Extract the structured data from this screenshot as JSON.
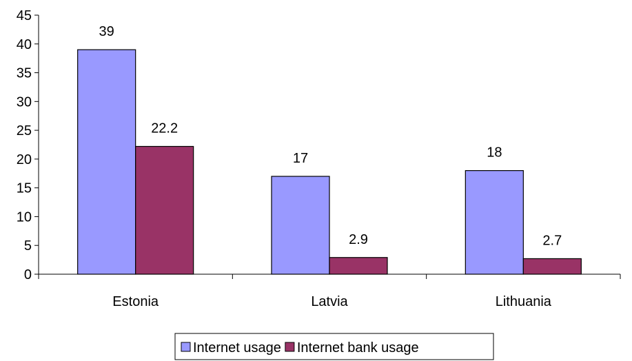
{
  "chart_data": {
    "type": "bar",
    "categories": [
      "Estonia",
      "Latvia",
      "Lithuania"
    ],
    "series": [
      {
        "name": "Internet usage",
        "values": [
          39,
          17,
          18
        ],
        "color": "#9999ff"
      },
      {
        "name": "Internet bank usage",
        "values": [
          22.2,
          2.9,
          2.7
        ],
        "color": "#993366"
      }
    ],
    "data_labels": [
      [
        "39",
        "17",
        "18"
      ],
      [
        "22.2",
        "2.9",
        "2.7"
      ]
    ],
    "title": "",
    "xlabel": "",
    "ylabel": "",
    "ylim": [
      0,
      45
    ],
    "yticks": [
      0,
      5,
      10,
      15,
      20,
      25,
      30,
      35,
      40,
      45
    ],
    "grid": false,
    "legend_position": "bottom"
  }
}
